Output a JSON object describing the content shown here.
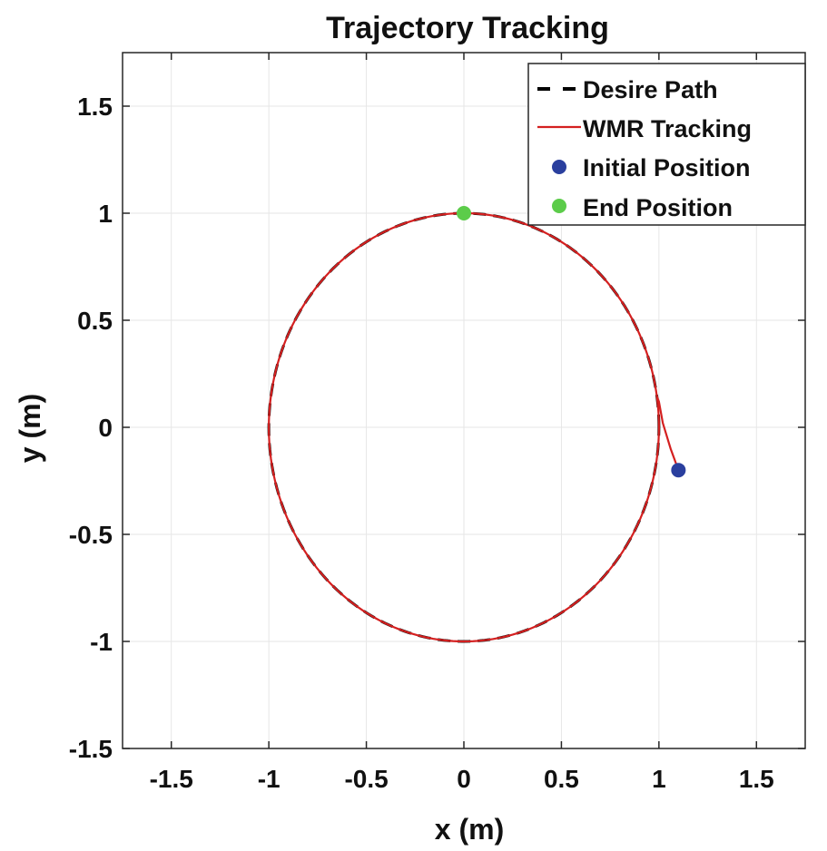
{
  "chart_data": {
    "type": "line",
    "title": "Trajectory Tracking",
    "xlabel": "x (m)",
    "ylabel": "y (m)",
    "xlim": [
      -1.75,
      1.75
    ],
    "ylim": [
      -1.5,
      1.75
    ],
    "x_ticks": [
      -1.5,
      -1,
      -0.5,
      0,
      0.5,
      1,
      1.5
    ],
    "x_tick_labels": [
      "-1.5",
      "-1",
      "-0.5",
      "0",
      "0.5",
      "1",
      "1.5"
    ],
    "y_ticks": [
      -1.5,
      -1,
      -0.5,
      0,
      0.5,
      1,
      1.5
    ],
    "y_tick_labels": [
      "-1.5",
      "-1",
      "-0.5",
      "0",
      "0.5",
      "1",
      "1.5"
    ],
    "grid": true,
    "legend_position": "top-right",
    "series": [
      {
        "name": "Desire Path",
        "style": "dashed",
        "color": "#000000",
        "shape": "circle",
        "center": [
          0,
          0
        ],
        "radius": 1
      },
      {
        "name": "WMR Tracking",
        "style": "solid",
        "color": "#d42020",
        "points": [
          [
            1.1,
            -0.2
          ],
          [
            1.06,
            -0.1
          ],
          [
            1.02,
            0.02
          ],
          [
            1.0,
            0.12
          ]
        ],
        "then_follows": "circle",
        "center": [
          0,
          0
        ],
        "radius": 1
      },
      {
        "name": "Initial Position",
        "style": "marker",
        "color": "#2a3f9e",
        "x": 1.1,
        "y": -0.2
      },
      {
        "name": "End Position",
        "style": "marker",
        "color": "#5ccc4a",
        "x": 0,
        "y": 1
      }
    ]
  }
}
